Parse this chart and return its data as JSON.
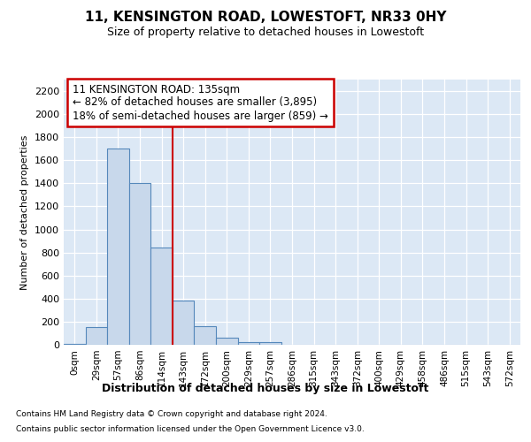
{
  "title": "11, KENSINGTON ROAD, LOWESTOFT, NR33 0HY",
  "subtitle": "Size of property relative to detached houses in Lowestoft",
  "xlabel": "Distribution of detached houses by size in Lowestoft",
  "ylabel": "Number of detached properties",
  "bar_labels": [
    "0sqm",
    "29sqm",
    "57sqm",
    "86sqm",
    "114sqm",
    "143sqm",
    "172sqm",
    "200sqm",
    "229sqm",
    "257sqm",
    "286sqm",
    "315sqm",
    "343sqm",
    "372sqm",
    "400sqm",
    "429sqm",
    "458sqm",
    "486sqm",
    "515sqm",
    "543sqm",
    "572sqm"
  ],
  "bar_values": [
    10,
    155,
    1700,
    1400,
    840,
    380,
    160,
    65,
    25,
    25,
    0,
    0,
    0,
    0,
    0,
    0,
    0,
    0,
    0,
    0,
    0
  ],
  "bar_color": "#c8d8eb",
  "bar_edge_color": "#5588bb",
  "ylim": [
    0,
    2300
  ],
  "yticks": [
    0,
    200,
    400,
    600,
    800,
    1000,
    1200,
    1400,
    1600,
    1800,
    2000,
    2200
  ],
  "annotation_text": "11 KENSINGTON ROAD: 135sqm\n← 82% of detached houses are smaller (3,895)\n18% of semi-detached houses are larger (859) →",
  "annotation_box_color": "#ffffff",
  "annotation_box_edge_color": "#cc0000",
  "red_line_color": "#cc0000",
  "plot_bg_color": "#dce8f5",
  "grid_color": "#ffffff",
  "fig_bg_color": "#ffffff",
  "footer_line1": "Contains HM Land Registry data © Crown copyright and database right 2024.",
  "footer_line2": "Contains public sector information licensed under the Open Government Licence v3.0."
}
